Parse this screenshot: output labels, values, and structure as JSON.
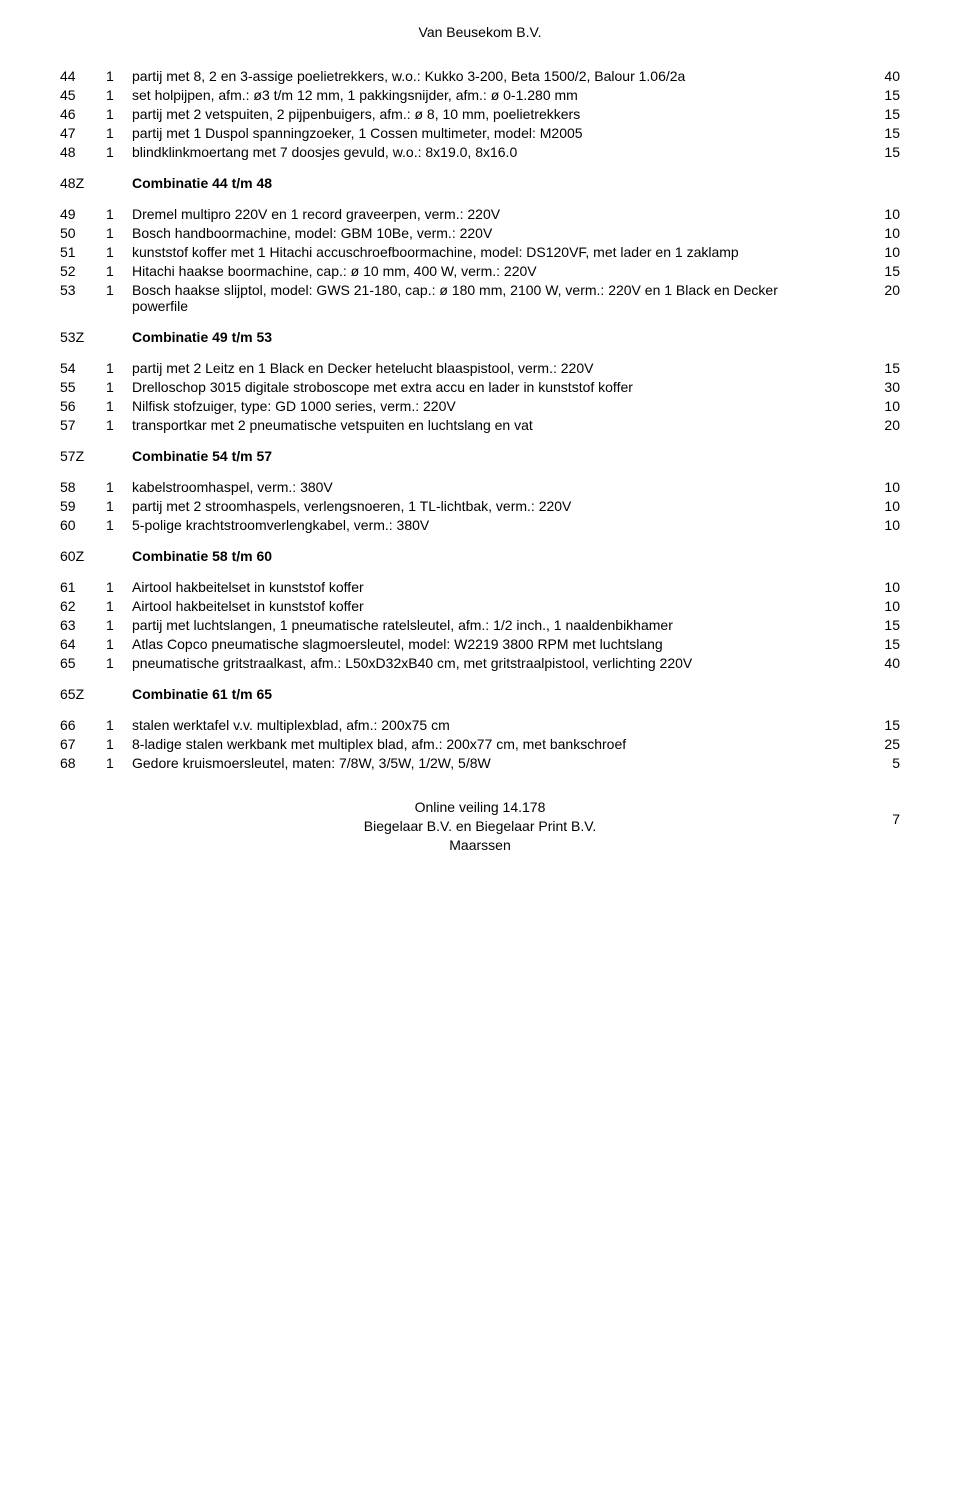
{
  "header": {
    "title": "Van Beusekom B.V."
  },
  "footer": {
    "line1": "Online veiling 14.178",
    "line2": "Biegelaar B.V. en Biegelaar Print B.V.",
    "line3": "Maarssen",
    "page": "7"
  },
  "sections": [
    {
      "rows": [
        {
          "num": "44",
          "qty": "1",
          "desc": "partij met 8, 2 en 3-assige poelietrekkers, w.o.: Kukko 3-200, Beta 1500/2, Balour 1.06/2a",
          "price": "40"
        },
        {
          "num": "45",
          "qty": "1",
          "desc": "set holpijpen, afm.: ø3 t/m 12 mm, 1 pakkingsnijder, afm.: ø 0-1.280 mm",
          "price": "15"
        },
        {
          "num": "46",
          "qty": "1",
          "desc": "partij met 2 vetspuiten, 2 pijpenbuigers, afm.: ø 8, 10 mm, poelietrekkers",
          "price": "15"
        },
        {
          "num": "47",
          "qty": "1",
          "desc": "partij met 1 Duspol spanningzoeker, 1 Cossen multimeter, model: M2005",
          "price": "15"
        },
        {
          "num": "48",
          "qty": "1",
          "desc": "blindklinkmoertang met 7 doosjes gevuld, w.o.: 8x19.0, 8x16.0",
          "price": "15"
        }
      ],
      "combo": {
        "num": "48Z",
        "desc": "Combinatie 44 t/m 48"
      }
    },
    {
      "rows": [
        {
          "num": "49",
          "qty": "1",
          "desc": "Dremel multipro 220V en 1 record graveerpen, verm.: 220V",
          "price": "10"
        },
        {
          "num": "50",
          "qty": "1",
          "desc": "Bosch handboormachine, model: GBM 10Be, verm.: 220V",
          "price": "10"
        },
        {
          "num": "51",
          "qty": "1",
          "desc": "kunststof koffer met 1 Hitachi accuschroefboormachine, model: DS120VF, met lader en 1 zaklamp",
          "price": "10"
        },
        {
          "num": "52",
          "qty": "1",
          "desc": "Hitachi haakse boormachine, cap.: ø 10 mm, 400 W, verm.: 220V",
          "price": "15"
        },
        {
          "num": "53",
          "qty": "1",
          "desc": "Bosch haakse slijptol, model: GWS 21-180, cap.: ø 180 mm, 2100 W, verm.: 220V en 1 Black en Decker powerfile",
          "price": "20"
        }
      ],
      "combo": {
        "num": "53Z",
        "desc": "Combinatie 49 t/m 53"
      }
    },
    {
      "rows": [
        {
          "num": "54",
          "qty": "1",
          "desc": "partij met 2 Leitz en 1 Black en Decker hetelucht blaaspistool, verm.: 220V",
          "price": "15"
        },
        {
          "num": "55",
          "qty": "1",
          "desc": "Drelloschop 3015 digitale stroboscope met extra accu en lader in kunststof koffer",
          "price": "30"
        },
        {
          "num": "56",
          "qty": "1",
          "desc": "Nilfisk stofzuiger, type: GD 1000 series, verm.: 220V",
          "price": "10"
        },
        {
          "num": "57",
          "qty": "1",
          "desc": "transportkar met 2 pneumatische vetspuiten en luchtslang en vat",
          "price": "20"
        }
      ],
      "combo": {
        "num": "57Z",
        "desc": "Combinatie 54 t/m 57"
      }
    },
    {
      "rows": [
        {
          "num": "58",
          "qty": "1",
          "desc": "kabelstroomhaspel, verm.: 380V",
          "price": "10"
        },
        {
          "num": "59",
          "qty": "1",
          "desc": "partij met 2 stroomhaspels, verlengsnoeren, 1 TL-lichtbak, verm.: 220V",
          "price": "10"
        },
        {
          "num": "60",
          "qty": "1",
          "desc": "5-polige krachtstroomverlengkabel, verm.: 380V",
          "price": "10"
        }
      ],
      "combo": {
        "num": "60Z",
        "desc": "Combinatie 58 t/m 60"
      }
    },
    {
      "rows": [
        {
          "num": "61",
          "qty": "1",
          "desc": "Airtool hakbeitelset in kunststof koffer",
          "price": "10"
        },
        {
          "num": "62",
          "qty": "1",
          "desc": "Airtool hakbeitelset in kunststof koffer",
          "price": "10"
        },
        {
          "num": "63",
          "qty": "1",
          "desc": "partij met luchtslangen, 1 pneumatische ratelsleutel, afm.: 1/2 inch., 1 naaldenbikhamer",
          "price": "15"
        },
        {
          "num": "64",
          "qty": "1",
          "desc": "Atlas Copco pneumatische slagmoersleutel, model: W2219 3800 RPM met luchtslang",
          "price": "15"
        },
        {
          "num": "65",
          "qty": "1",
          "desc": "pneumatische gritstraalkast, afm.: L50xD32xB40 cm, met gritstraalpistool, verlichting 220V",
          "price": "40"
        }
      ],
      "combo": {
        "num": "65Z",
        "desc": "Combinatie 61 t/m 65"
      }
    },
    {
      "rows": [
        {
          "num": "66",
          "qty": "1",
          "desc": "stalen werktafel v.v. multiplexblad, afm.: 200x75 cm",
          "price": "15"
        },
        {
          "num": "67",
          "qty": "1",
          "desc": "8-ladige stalen werkbank met multiplex blad, afm.: 200x77 cm, met bankschroef",
          "price": "25"
        },
        {
          "num": "68",
          "qty": "1",
          "desc": "Gedore kruismoersleutel, maten: 7/8W, 3/5W, 1/2W, 5/8W",
          "price": "5"
        }
      ]
    }
  ]
}
